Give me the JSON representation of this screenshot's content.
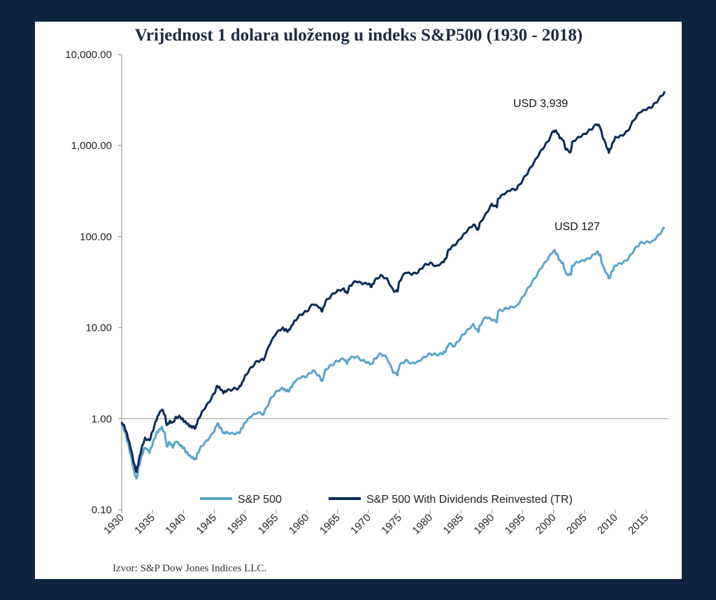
{
  "chart_data": {
    "type": "line",
    "title": "Vrijednost 1 dolara uloženog u indeks S&P500 (1930 - 2018)",
    "y_scale": "log",
    "ylim": [
      0.1,
      10000
    ],
    "xlim": [
      1930,
      2018.5
    ],
    "ytick_labels": [
      "10,000.00",
      "1,000.00",
      "100.00",
      "10.00",
      "1.00",
      "0.10"
    ],
    "ytick_values": [
      10000,
      1000,
      100,
      10,
      1,
      0.1
    ],
    "xtick_labels": [
      "1930",
      "1935",
      "1940",
      "1945",
      "1950",
      "1955",
      "1960",
      "1965",
      "1970",
      "1975",
      "1980",
      "1985",
      "1990",
      "1995",
      "2000",
      "2005",
      "2010",
      "2015"
    ],
    "xtick_values": [
      1930,
      1935,
      1940,
      1945,
      1950,
      1955,
      1960,
      1965,
      1970,
      1975,
      1980,
      1985,
      1990,
      1995,
      2000,
      2005,
      2010,
      2015
    ],
    "legend_position": "bottom",
    "grid": false,
    "series": [
      {
        "name": "S&P 500",
        "color": "#5ba3cc",
        "x": [
          1930,
          1930.5,
          1931,
          1931.5,
          1932,
          1932.4,
          1932.8,
          1933.3,
          1933.8,
          1934.5,
          1935,
          1935.6,
          1936,
          1936.5,
          1937,
          1937.3,
          1937.8,
          1938.3,
          1938.8,
          1939.5,
          1940,
          1940.5,
          1941,
          1941.5,
          1942,
          1942.3,
          1943,
          1944,
          1945,
          1945.5,
          1946,
          1946.5,
          1947,
          1948,
          1949,
          1949.5,
          1950,
          1951,
          1952,
          1953,
          1954,
          1955,
          1956,
          1956.5,
          1957,
          1957.5,
          1958,
          1959,
          1960,
          1961,
          1962,
          1962.5,
          1963,
          1964,
          1965,
          1966,
          1966.5,
          1967,
          1968,
          1969,
          1970,
          1970.5,
          1971,
          1972,
          1973,
          1974,
          1974.7,
          1975,
          1976,
          1977,
          1978,
          1979,
          1980,
          1981,
          1982,
          1982.5,
          1983,
          1984,
          1985,
          1986,
          1987,
          1987.8,
          1988,
          1989,
          1990,
          1990.8,
          1991,
          1992,
          1993,
          1994,
          1995,
          1996,
          1997,
          1998,
          1999,
          2000,
          2000.5,
          2001,
          2001.5,
          2002,
          2002.8,
          2003,
          2004,
          2005,
          2006,
          2007,
          2007.5,
          2008,
          2008.8,
          2009,
          2009.5,
          2010,
          2011,
          2012,
          2013,
          2014,
          2015,
          2016,
          2017,
          2018
        ],
        "values": [
          0.88,
          0.72,
          0.55,
          0.4,
          0.27,
          0.22,
          0.3,
          0.4,
          0.48,
          0.42,
          0.52,
          0.68,
          0.75,
          0.82,
          0.7,
          0.5,
          0.55,
          0.48,
          0.56,
          0.5,
          0.48,
          0.43,
          0.4,
          0.38,
          0.36,
          0.42,
          0.5,
          0.58,
          0.72,
          0.88,
          0.8,
          0.7,
          0.72,
          0.7,
          0.7,
          0.78,
          0.9,
          1.05,
          1.15,
          1.12,
          1.6,
          2.0,
          2.2,
          2.1,
          2.0,
          2.2,
          2.5,
          2.8,
          2.9,
          3.4,
          3.0,
          2.6,
          3.5,
          3.9,
          4.3,
          4.5,
          4.0,
          4.6,
          4.8,
          4.4,
          4.2,
          4.0,
          4.6,
          5.2,
          4.6,
          3.2,
          3.0,
          3.8,
          4.4,
          4.1,
          4.3,
          4.8,
          5.2,
          5.0,
          5.1,
          5.4,
          6.6,
          6.3,
          8.0,
          9.5,
          11.0,
          9.0,
          10.5,
          13.0,
          12.0,
          11.5,
          15.0,
          16.0,
          17.0,
          17.5,
          22.0,
          28.0,
          35.0,
          45.0,
          55.0,
          70.0,
          65.0,
          55.0,
          52.0,
          40.0,
          38.0,
          48.0,
          52.0,
          54.0,
          58.0,
          68.0,
          64.0,
          48.0,
          38.0,
          35.0,
          42.0,
          48.0,
          50.0,
          55.0,
          70.0,
          85.0,
          88.0,
          90.0,
          105.0,
          127.0
        ]
      },
      {
        "name": "S&P 500 With Dividends Reinvested (TR)",
        "color": "#0b2a55",
        "x": [
          1930,
          1930.5,
          1931,
          1931.5,
          1932,
          1932.4,
          1932.8,
          1933.3,
          1933.8,
          1934.5,
          1935,
          1935.6,
          1936,
          1936.5,
          1937,
          1937.3,
          1937.8,
          1938.3,
          1938.8,
          1939.5,
          1940,
          1940.5,
          1941,
          1941.5,
          1942,
          1942.3,
          1943,
          1944,
          1945,
          1945.5,
          1946,
          1946.5,
          1947,
          1948,
          1949,
          1949.5,
          1950,
          1951,
          1952,
          1953,
          1954,
          1955,
          1956,
          1956.5,
          1957,
          1957.5,
          1958,
          1959,
          1960,
          1961,
          1962,
          1962.5,
          1963,
          1964,
          1965,
          1966,
          1966.5,
          1967,
          1968,
          1969,
          1970,
          1970.5,
          1971,
          1972,
          1973,
          1974,
          1974.7,
          1975,
          1976,
          1977,
          1978,
          1979,
          1980,
          1981,
          1982,
          1982.5,
          1983,
          1984,
          1985,
          1986,
          1987,
          1987.8,
          1988,
          1989,
          1990,
          1990.8,
          1991,
          1992,
          1993,
          1994,
          1995,
          1996,
          1997,
          1998,
          1999,
          2000,
          2000.5,
          2001,
          2001.5,
          2002,
          2002.8,
          2003,
          2004,
          2005,
          2006,
          2007,
          2007.5,
          2008,
          2008.8,
          2009,
          2009.5,
          2010,
          2011,
          2012,
          2013,
          2014,
          2015,
          2016,
          2017,
          2018
        ],
        "values": [
          0.92,
          0.8,
          0.62,
          0.46,
          0.32,
          0.26,
          0.36,
          0.5,
          0.62,
          0.58,
          0.72,
          0.95,
          1.1,
          1.25,
          1.1,
          0.85,
          0.95,
          0.92,
          1.05,
          1.05,
          0.95,
          0.88,
          0.82,
          0.8,
          0.8,
          0.95,
          1.2,
          1.5,
          1.9,
          2.3,
          2.1,
          1.9,
          2.0,
          2.1,
          2.2,
          2.5,
          3.0,
          3.7,
          4.3,
          4.4,
          6.5,
          8.5,
          9.8,
          9.5,
          9.3,
          10.5,
          12.0,
          14.0,
          15.0,
          18.0,
          16.5,
          15.0,
          19.0,
          23.0,
          26.0,
          27.0,
          24.0,
          29.0,
          32.0,
          30.0,
          30.0,
          28.0,
          33.0,
          38.0,
          35.0,
          26.0,
          25.0,
          32.0,
          40.0,
          38.0,
          40.0,
          48.0,
          52.0,
          48.0,
          53.0,
          57.0,
          72.0,
          80.0,
          95.0,
          115.0,
          135.0,
          120.0,
          140.0,
          180.0,
          230.0,
          210.0,
          260.0,
          290.0,
          320.0,
          330.0,
          420.0,
          540.0,
          700.0,
          900.0,
          1100.0,
          1450.0,
          1400.0,
          1200.0,
          1150.0,
          900.0,
          860.0,
          1100.0,
          1250.0,
          1350.0,
          1500.0,
          1700.0,
          1600.0,
          1200.0,
          900.0,
          850.0,
          1050.0,
          1250.0,
          1300.0,
          1450.0,
          1900.0,
          2300.0,
          2450.0,
          2650.0,
          3200.0,
          3939.0
        ]
      }
    ]
  },
  "annotations": {
    "tr_end": "USD 3,939",
    "sp_end": "USD 127"
  },
  "legend": {
    "sp500": "S&P 500",
    "tr": "S&P 500 With Dividends Reinvested (TR)"
  },
  "source_note": "Izvor: S&P Dow Jones Indices LLC."
}
